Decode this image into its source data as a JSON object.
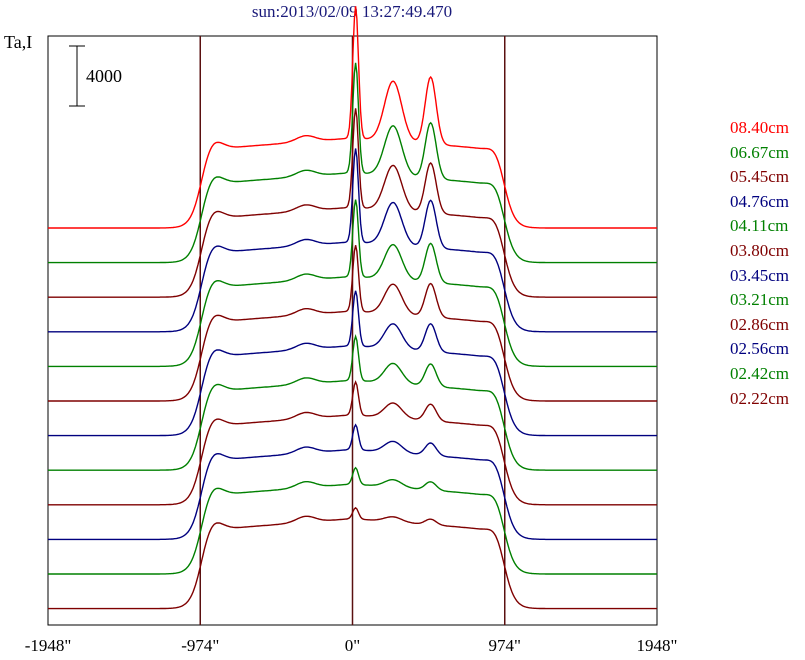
{
  "title": "sun:2013/02/09 13:27:49.470",
  "ylabel": "Ta,I",
  "scale_bar_label": "4000",
  "chart_data": {
    "type": "line",
    "title": "sun:2013/02/09 13:27:49.470",
    "ylabel": "Ta,I",
    "xlabel": "",
    "xlim": [
      -1948,
      1948
    ],
    "x_ticks": [
      "-1948\"",
      "-974\"",
      "0\"",
      "974\"",
      "1948\""
    ],
    "x_tick_values": [
      -1948,
      -974,
      0,
      974,
      1948
    ],
    "vertical_lines": [
      -974,
      0,
      974
    ],
    "scale_bar": 4000,
    "series": [
      {
        "name": "08.40cm",
        "color": "#ff0000",
        "peak": 2.4
      },
      {
        "name": "06.67cm",
        "color": "#008000",
        "peak": 2.0
      },
      {
        "name": "05.45cm",
        "color": "#7f0000",
        "peak": 1.8
      },
      {
        "name": "04.76cm",
        "color": "#00007f",
        "peak": 1.7
      },
      {
        "name": "04.11cm",
        "color": "#008000",
        "peak": 1.4
      },
      {
        "name": "03.80cm",
        "color": "#7f0000",
        "peak": 1.2
      },
      {
        "name": "03.45cm",
        "color": "#00007f",
        "peak": 1.0
      },
      {
        "name": "03.21cm",
        "color": "#008000",
        "peak": 0.8
      },
      {
        "name": "02.86cm",
        "color": "#7f0000",
        "peak": 0.6
      },
      {
        "name": "02.56cm",
        "color": "#00007f",
        "peak": 0.45
      },
      {
        "name": "02.42cm",
        "color": "#008000",
        "peak": 0.3
      },
      {
        "name": "02.22cm",
        "color": "#7f0000",
        "peak": 0.2
      }
    ]
  }
}
